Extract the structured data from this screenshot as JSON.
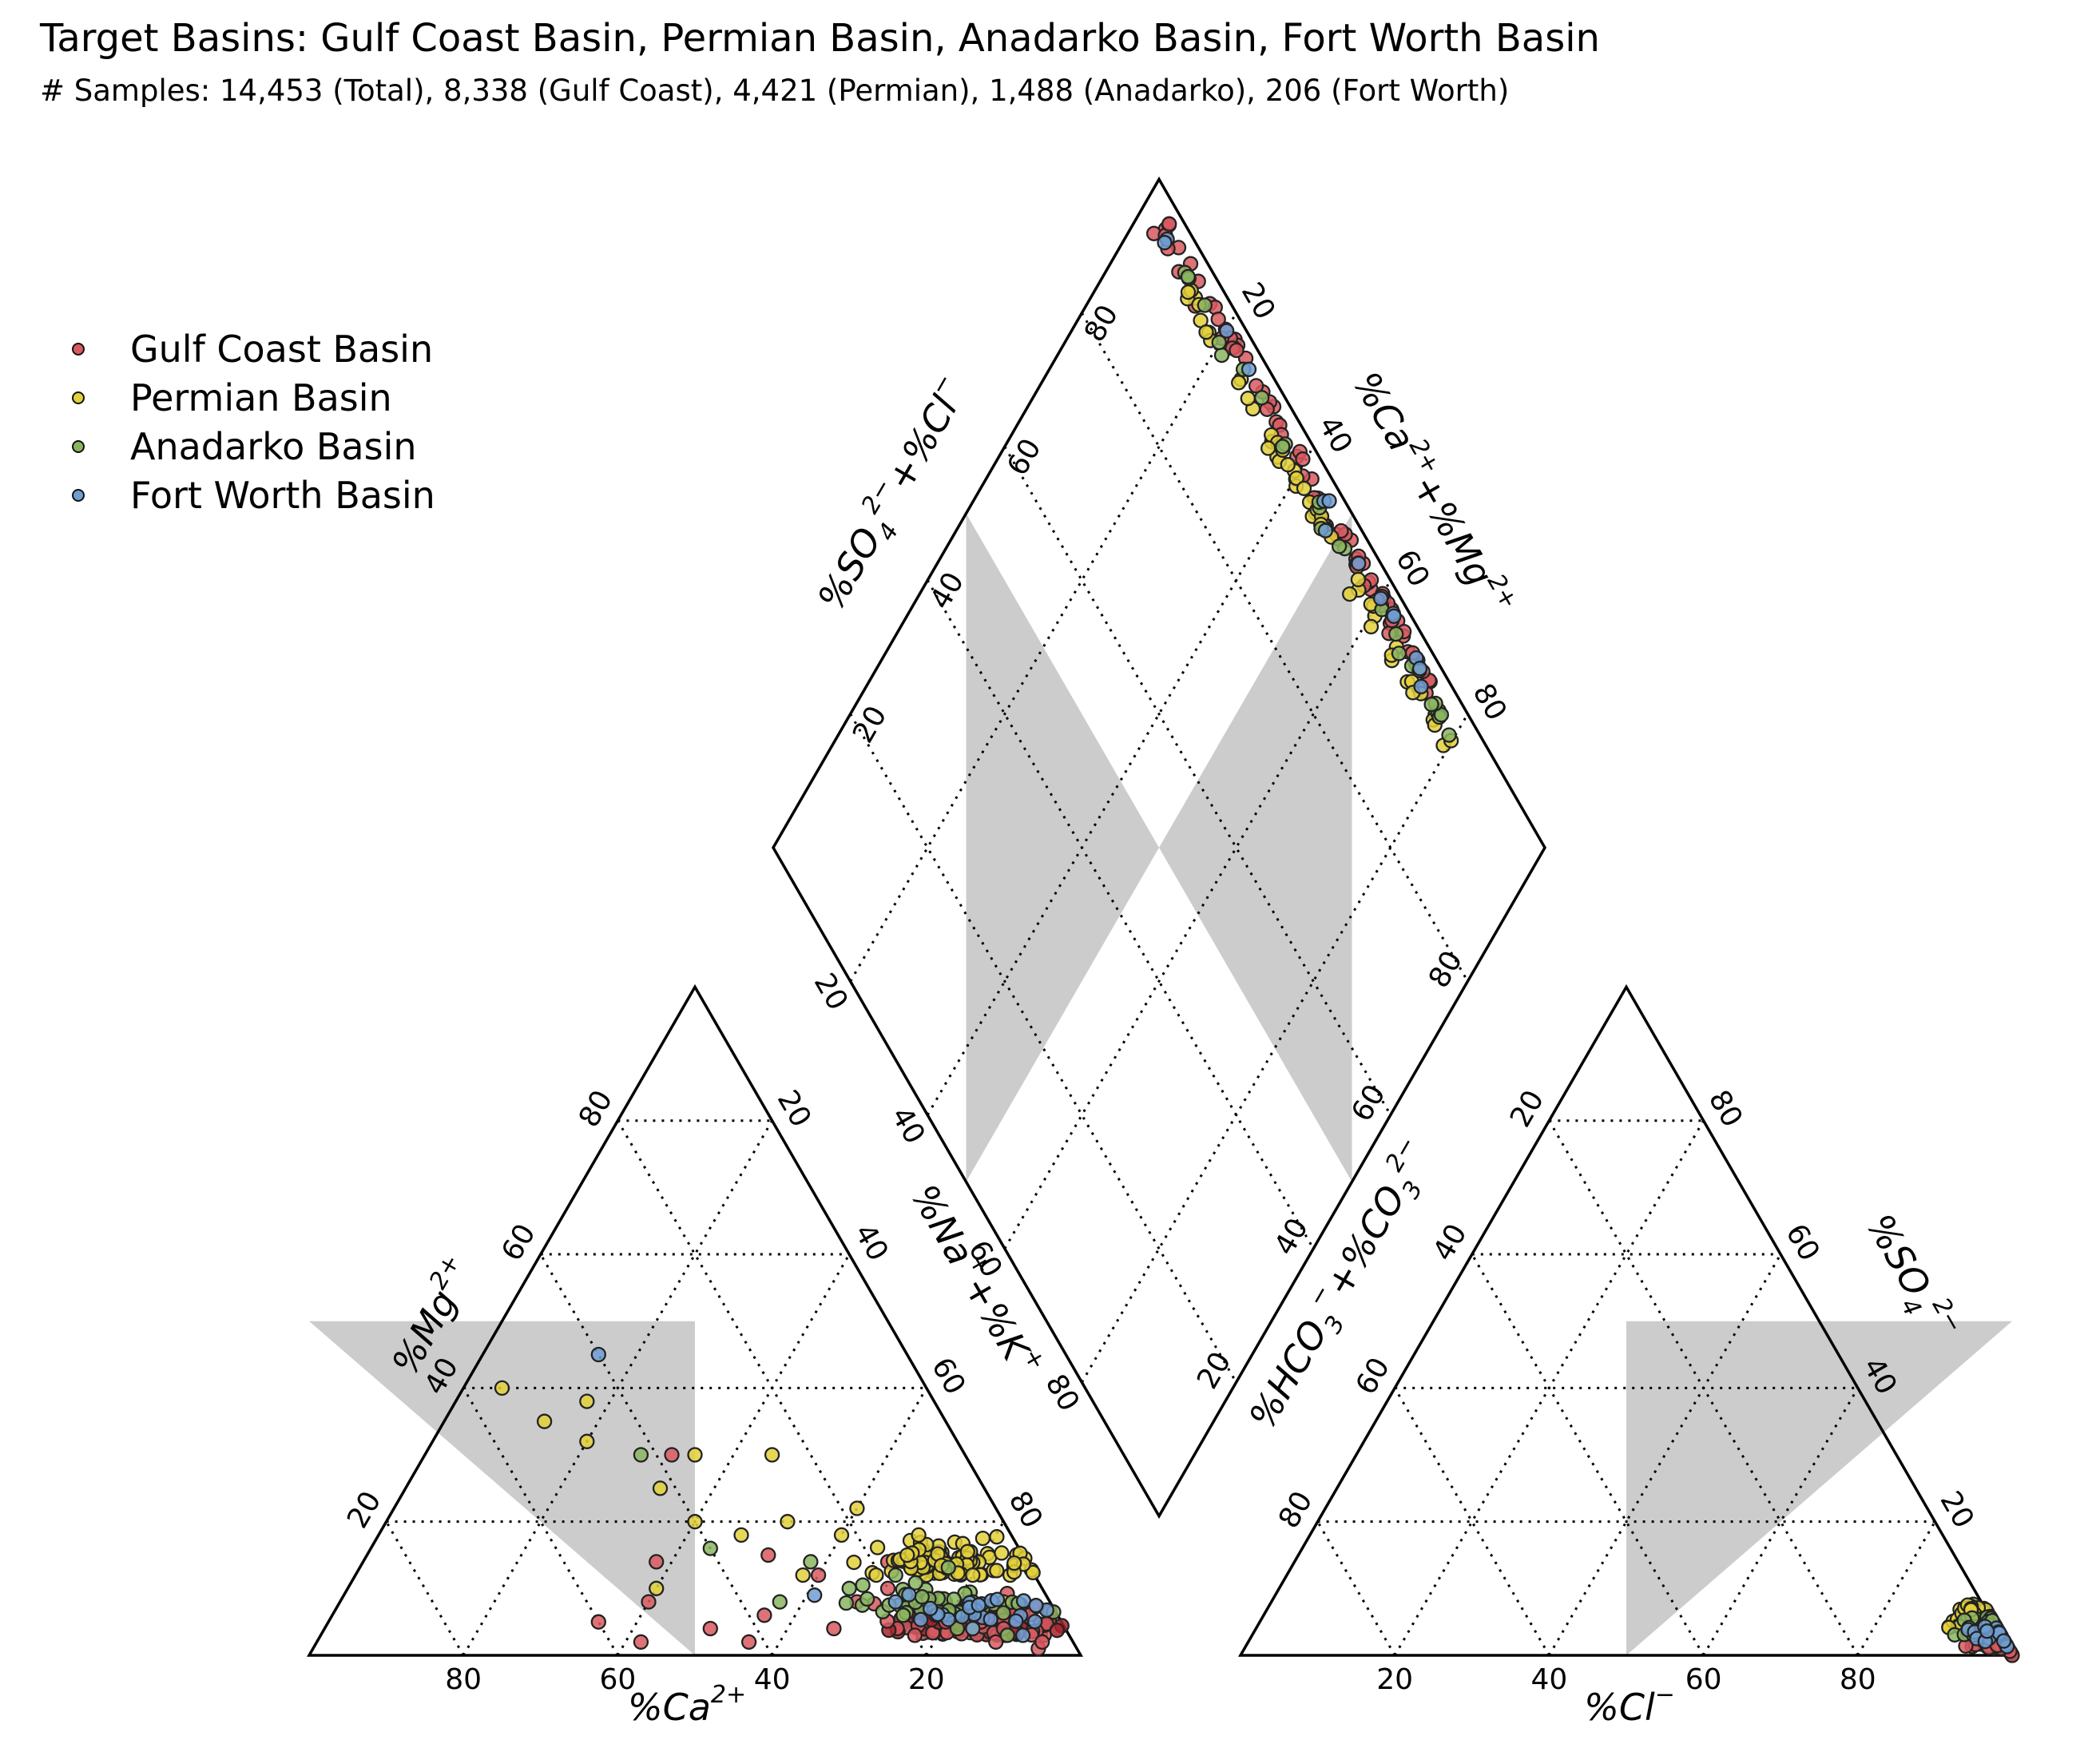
{
  "header": {
    "title": "Target Basins: Gulf Coast Basin, Permian Basin, Anadarko Basin, Fort Worth Basin",
    "subtitle": "# Samples: 14,453 (Total), 8,338 (Gulf Coast), 4,421 (Permian), 1,488 (Anadarko), 206 (Fort Worth)"
  },
  "legend": {
    "items": [
      {
        "label": "Gulf Coast Basin",
        "color": "#d9595f"
      },
      {
        "label": "Permian Basin",
        "color": "#e3d03a"
      },
      {
        "label": "Anadarko Basin",
        "color": "#8ab55f"
      },
      {
        "label": "Fort Worth Basin",
        "color": "#6f9ed4"
      }
    ]
  },
  "chart_data": {
    "type": "scatter",
    "chart_kind": "Piper diagram",
    "grid": true,
    "legend_placement": "upper-left",
    "shaded_zone_color": "#cccccc",
    "ticks": [
      "20",
      "40",
      "60",
      "80"
    ],
    "axes": {
      "cation_ca": "%Ca$^{2+}$",
      "cation_mg": "%Mg$^{2+}$",
      "cation_nak": "%Na$^+$+%K$^+$",
      "anion_cl": "%Cl$^{-}$",
      "anion_so4": "%SO$_4^{2-}$",
      "anion_hco3co3": "%HCO$_3^-$+%CO$_3^{2-}$",
      "diamond_so4cl": "%SO$_4^{2-}$+%Cl$^-$",
      "diamond_camg": "%Ca$^{2+}$+%Mg$^{2+}$"
    },
    "series": [
      {
        "name": "Gulf Coast Basin",
        "n": 8338,
        "cation_centroid": {
          "ca": 12,
          "mg": 3,
          "na_k": 85
        },
        "cation_points": [
          [
            46,
            4,
            50
          ],
          [
            52,
            8,
            40
          ],
          [
            60,
            5,
            35
          ],
          [
            38,
            6,
            56
          ],
          [
            30,
            4,
            66
          ],
          [
            25,
            8,
            67
          ],
          [
            20,
            3,
            77
          ],
          [
            15,
            5,
            80
          ],
          [
            10,
            2,
            88
          ],
          [
            8,
            4,
            88
          ],
          [
            5,
            1,
            94
          ],
          [
            4,
            2,
            94
          ],
          [
            33,
            15,
            52
          ],
          [
            38,
            30,
            32
          ],
          [
            20,
            10,
            70
          ],
          [
            42,
            2,
            56
          ],
          [
            56,
            2,
            42
          ],
          [
            48,
            14,
            38
          ],
          [
            28,
            12,
            60
          ],
          [
            18,
            14,
            68
          ]
        ],
        "anion_centroid": {
          "cl": 97,
          "so4": 1,
          "hco3_co3": 2
        }
      },
      {
        "name": "Permian Basin",
        "n": 4421,
        "cation_centroid": {
          "ca": 10,
          "mg": 12,
          "na_k": 78
        },
        "cation_points": [
          [
            50,
            10,
            40
          ],
          [
            40,
            20,
            40
          ],
          [
            35,
            18,
            47
          ],
          [
            28,
            20,
            52
          ],
          [
            22,
            18,
            60
          ],
          [
            18,
            22,
            60
          ],
          [
            15,
            15,
            70
          ],
          [
            12,
            18,
            70
          ],
          [
            8,
            12,
            80
          ],
          [
            6,
            8,
            86
          ],
          [
            35,
            30,
            35
          ],
          [
            25,
            30,
            45
          ],
          [
            55,
            40,
            5
          ],
          [
            48,
            32,
            20
          ],
          [
            42,
            25,
            33
          ],
          [
            30,
            12,
            58
          ],
          [
            20,
            6,
            74
          ],
          [
            12,
            4,
            84
          ],
          [
            45,
            38,
            17
          ],
          [
            52,
            35,
            13
          ]
        ],
        "anion_centroid": {
          "cl": 92,
          "so4": 4,
          "hco3_co3": 4
        }
      },
      {
        "name": "Anadarko Basin",
        "n": 1488,
        "cation_centroid": {
          "ca": 14,
          "mg": 6,
          "na_k": 80
        },
        "cation_points": [
          [
            20,
            6,
            74
          ],
          [
            14,
            4,
            82
          ],
          [
            10,
            8,
            82
          ],
          [
            25,
            10,
            65
          ],
          [
            35,
            8,
            57
          ],
          [
            42,
            30,
            28
          ],
          [
            28,
            14,
            58
          ],
          [
            8,
            3,
            89
          ],
          [
            40,
            16,
            44
          ],
          [
            18,
            12,
            70
          ]
        ],
        "anion_centroid": {
          "cl": 94,
          "so4": 3,
          "hco3_co3": 3
        }
      },
      {
        "name": "Fort Worth Basin",
        "n": 206,
        "cation_centroid": {
          "ca": 10,
          "mg": 5,
          "na_k": 85
        },
        "cation_points": [
          [
            40,
            45,
            15
          ],
          [
            12,
            4,
            84
          ],
          [
            20,
            8,
            72
          ],
          [
            30,
            9,
            61
          ],
          [
            16,
            7,
            77
          ],
          [
            6,
            3,
            91
          ]
        ],
        "anion_centroid": {
          "cl": 96,
          "so4": 2,
          "hco3_co3": 2
        }
      }
    ]
  }
}
